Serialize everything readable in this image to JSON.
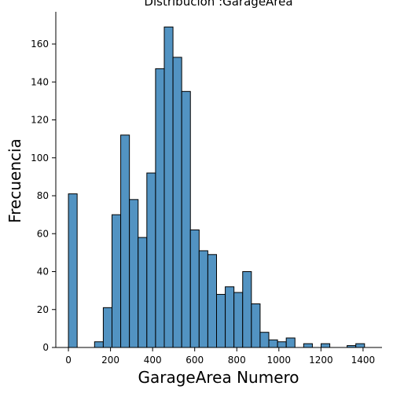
{
  "chart_data": {
    "type": "bar",
    "title": "Distribución :GarageArea",
    "xlabel": "GarageArea Numero",
    "ylabel": "Frecuencia",
    "xlim": [
      -60,
      1490
    ],
    "ylim": [
      0,
      177
    ],
    "x_ticks": [
      0,
      200,
      400,
      600,
      800,
      1000,
      1200,
      1400
    ],
    "y_ticks": [
      0,
      20,
      40,
      60,
      80,
      100,
      120,
      140,
      160
    ],
    "grid": false,
    "bar_color": "#5293c2",
    "edge_color": "#000000",
    "bins": [
      {
        "start": 0,
        "end": 41.4,
        "count": 81
      },
      {
        "start": 124.2,
        "end": 165.6,
        "count": 3
      },
      {
        "start": 165.6,
        "end": 207.0,
        "count": 21
      },
      {
        "start": 207.0,
        "end": 248.4,
        "count": 70
      },
      {
        "start": 248.4,
        "end": 289.8,
        "count": 112
      },
      {
        "start": 289.8,
        "end": 331.2,
        "count": 78
      },
      {
        "start": 331.2,
        "end": 372.6,
        "count": 58
      },
      {
        "start": 372.6,
        "end": 414.0,
        "count": 92
      },
      {
        "start": 414.0,
        "end": 455.4,
        "count": 147
      },
      {
        "start": 455.4,
        "end": 496.8,
        "count": 169
      },
      {
        "start": 496.8,
        "end": 538.2,
        "count": 153
      },
      {
        "start": 538.2,
        "end": 579.6,
        "count": 135
      },
      {
        "start": 579.6,
        "end": 621.0,
        "count": 62
      },
      {
        "start": 621.0,
        "end": 662.4,
        "count": 51
      },
      {
        "start": 662.4,
        "end": 703.8,
        "count": 49
      },
      {
        "start": 703.8,
        "end": 745.2,
        "count": 28
      },
      {
        "start": 745.2,
        "end": 786.6,
        "count": 32
      },
      {
        "start": 786.6,
        "end": 828.0,
        "count": 29
      },
      {
        "start": 828.0,
        "end": 869.4,
        "count": 40
      },
      {
        "start": 869.4,
        "end": 910.8,
        "count": 23
      },
      {
        "start": 910.8,
        "end": 952.2,
        "count": 8
      },
      {
        "start": 952.2,
        "end": 993.6,
        "count": 4
      },
      {
        "start": 993.6,
        "end": 1035.0,
        "count": 3
      },
      {
        "start": 1035.0,
        "end": 1076.4,
        "count": 5
      },
      {
        "start": 1117.8,
        "end": 1159.2,
        "count": 2
      },
      {
        "start": 1200.6,
        "end": 1242.0,
        "count": 2
      },
      {
        "start": 1324.2,
        "end": 1365.6,
        "count": 1
      },
      {
        "start": 1365.6,
        "end": 1407.0,
        "count": 2
      }
    ]
  }
}
